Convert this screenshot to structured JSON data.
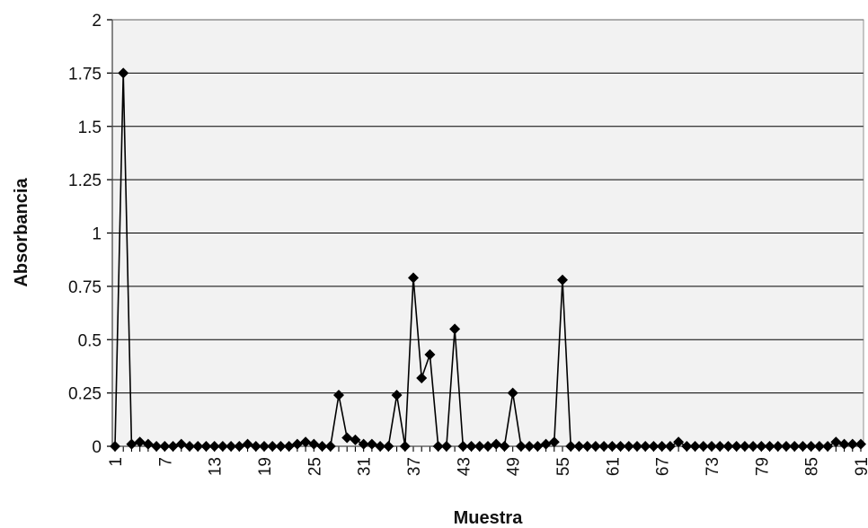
{
  "chart_data": {
    "type": "line",
    "xlabel": "Muestra",
    "ylabel": "Absorbancia",
    "xlim": [
      1,
      91
    ],
    "ylim": [
      0,
      2
    ],
    "y_ticks": [
      0,
      0.25,
      0.5,
      0.75,
      1,
      1.25,
      1.5,
      1.75,
      2
    ],
    "y_tick_labels": [
      "0",
      "0.25",
      "0.5",
      "0.75",
      "1",
      "1.25",
      "1.5",
      "1.75",
      "2"
    ],
    "x_tick_labels": [
      "1",
      "7",
      "13",
      "19",
      "25",
      "31",
      "37",
      "43",
      "49",
      "55",
      "61",
      "67",
      "73",
      "79",
      "85",
      "91"
    ],
    "grid": true,
    "legend": "none",
    "colors": {
      "plot_background": "#f2f2f2",
      "gridline": "#000000",
      "series": "#000000"
    },
    "series": [
      {
        "marker": "diamond",
        "x": [
          1,
          2,
          3,
          4,
          5,
          6,
          7,
          8,
          9,
          10,
          11,
          12,
          13,
          14,
          15,
          16,
          17,
          18,
          19,
          20,
          21,
          22,
          23,
          24,
          25,
          26,
          27,
          28,
          29,
          30,
          31,
          32,
          33,
          34,
          35,
          36,
          37,
          38,
          39,
          40,
          41,
          42,
          43,
          44,
          45,
          46,
          47,
          48,
          49,
          50,
          51,
          52,
          53,
          54,
          55,
          56,
          57,
          58,
          59,
          60,
          61,
          62,
          63,
          64,
          65,
          66,
          67,
          68,
          69,
          70,
          71,
          72,
          73,
          74,
          75,
          76,
          77,
          78,
          79,
          80,
          81,
          82,
          83,
          84,
          85,
          86,
          87,
          88,
          89,
          90,
          91
        ],
        "y": [
          0,
          1.75,
          0.01,
          0.02,
          0.01,
          0,
          0,
          0,
          0.01,
          0,
          0,
          0,
          0,
          0,
          0,
          0,
          0.01,
          0,
          0,
          0,
          0,
          0,
          0.01,
          0.02,
          0.01,
          0,
          0,
          0.24,
          0.04,
          0.03,
          0.01,
          0.01,
          0,
          0,
          0.24,
          0,
          0.79,
          0.32,
          0.43,
          0,
          0,
          0.55,
          0,
          0,
          0,
          0,
          0.01,
          0,
          0.25,
          0,
          0,
          0,
          0.01,
          0.02,
          0.78,
          0,
          0,
          0,
          0,
          0,
          0,
          0,
          0,
          0,
          0,
          0,
          0,
          0,
          0.02,
          0,
          0,
          0,
          0,
          0,
          0,
          0,
          0,
          0,
          0,
          0,
          0,
          0,
          0,
          0,
          0,
          0,
          0,
          0.02,
          0.01,
          0.01,
          0.01
        ]
      }
    ]
  }
}
